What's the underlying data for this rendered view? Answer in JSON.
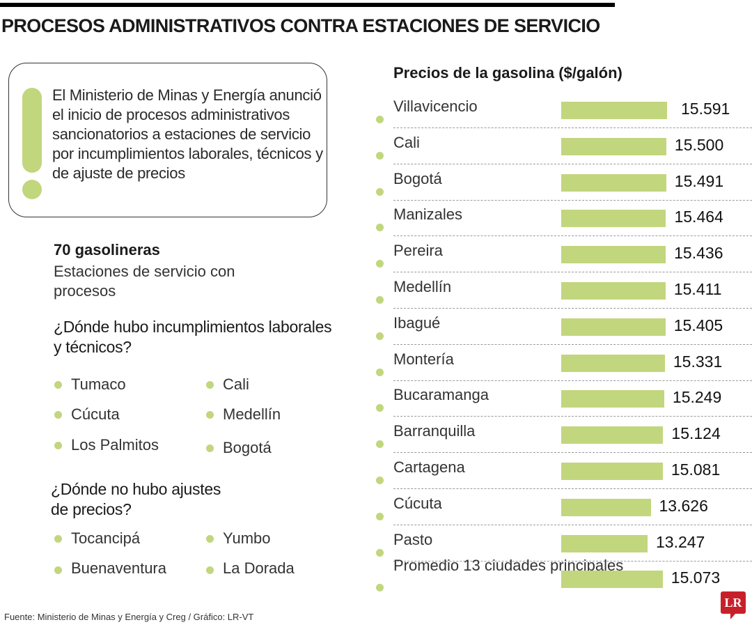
{
  "title": "PROCESOS ADMINISTRATIVOS CONTRA ESTACIONES DE SERVICIO",
  "callout": "El Ministerio de Minas y Energía anunció el inicio de procesos administrativos sancionatorios a estaciones de servicio por incumplimientos laborales, técnicos y de ajuste de precios",
  "stat": {
    "number": "70 gasolineras",
    "description": "Estaciones de servicio con procesos"
  },
  "q1": {
    "question": "¿Dónde hubo incumplimientos laborales y técnicos?",
    "items": [
      "Tumaco",
      "Cúcuta",
      "Los Palmitos",
      "Cali",
      "Medellín",
      "Bogotá"
    ]
  },
  "q2": {
    "question": "¿Dónde no hubo ajustes de precios?",
    "items": [
      "Tocancipá",
      "Buenaventura",
      "Yumbo",
      "La Dorada"
    ]
  },
  "source": "Fuente:  Ministerio de Minas y Energía y Creg / Gráfico: LR-VT",
  "logo": "LR",
  "colors": {
    "accent": "#c2d67e",
    "logo": "#c8202a"
  },
  "chart_data": {
    "type": "bar",
    "orientation": "horizontal",
    "title": "Precios de la gasolina ($/galón)",
    "categories": [
      "Villavicencio",
      "Cali",
      "Bogotá",
      "Manizales",
      "Pereira",
      "Medellín",
      "Ibagué",
      "Montería",
      "Bucaramanga",
      "Barranquilla",
      "Cartagena",
      "Cúcuta",
      "Pasto",
      "Promedio 13 ciudades principales"
    ],
    "values": [
      15591,
      15500,
      15491,
      15464,
      15436,
      15411,
      15405,
      15331,
      15249,
      15124,
      15081,
      13626,
      13247,
      15073
    ],
    "labels": [
      "15.591",
      "15.500",
      "15.491",
      "15.464",
      "15.436",
      "15.411",
      "15.405",
      "15.331",
      "15.249",
      "15.124",
      "15.081",
      "13.626",
      "13.247",
      "15.073"
    ],
    "grid": false,
    "legend": "none"
  }
}
